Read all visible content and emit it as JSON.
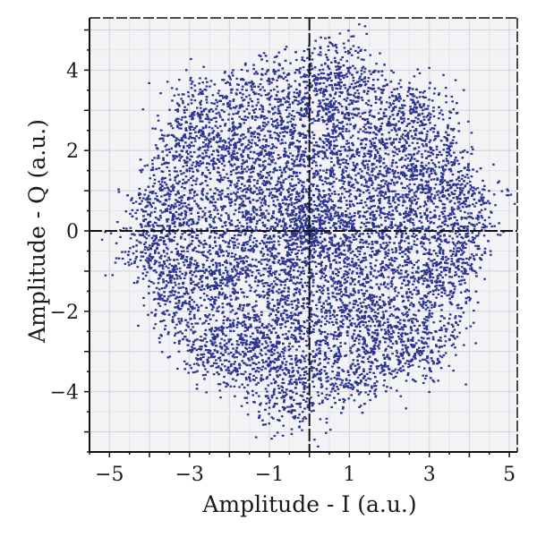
{
  "chart_data": {
    "type": "scatter",
    "title": "",
    "xlabel": "Amplitude - I (a.u.)",
    "ylabel": "Amplitude - Q (a.u.)",
    "xlim": [
      -5.5,
      5.2
    ],
    "ylim": [
      -5.5,
      5.3
    ],
    "xticks": [
      -5,
      -3,
      -1,
      1,
      3,
      5
    ],
    "xtick_labels": [
      "−5",
      "−3",
      "−1",
      "1",
      "3",
      "5"
    ],
    "yticks": [
      4,
      2,
      0,
      -2,
      -4
    ],
    "ytick_labels": [
      "4",
      "2",
      "0",
      "−2",
      "−4"
    ],
    "grid": true,
    "crosshair_at_origin": true,
    "legend": "none",
    "point_color": "#2b3590",
    "series": [
      {
        "points": [
          {
            "x": 0,
            "y": 0
          },
          {
            "x": 0.5,
            "y": 0.3
          },
          {
            "x": -0.4,
            "y": 0.6
          },
          {
            "x": -0.6,
            "y": -0.4
          },
          {
            "x": 0.3,
            "y": -0.6
          },
          {
            "x": 1.8,
            "y": 1.2
          },
          {
            "x": -1.5,
            "y": 1.6
          },
          {
            "x": -2.0,
            "y": -0.8
          },
          {
            "x": 1.2,
            "y": -1.9
          },
          {
            "x": 2.2,
            "y": 0.2
          },
          {
            "x": 0.2,
            "y": 2.3
          },
          {
            "x": -0.5,
            "y": -2.2
          },
          {
            "x": 3.0,
            "y": 1.5
          },
          {
            "x": -2.8,
            "y": 2.0
          },
          {
            "x": -3.2,
            "y": -1.2
          },
          {
            "x": 2.4,
            "y": -2.6
          },
          {
            "x": 0.5,
            "y": 3.4
          },
          {
            "x": -1.0,
            "y": -3.5
          },
          {
            "x": 3.6,
            "y": -0.5
          },
          {
            "x": -3.7,
            "y": 0.4
          },
          {
            "x": 4.2,
            "y": 0.8
          },
          {
            "x": -4.3,
            "y": -0.5
          },
          {
            "x": 0.8,
            "y": 4.3
          },
          {
            "x": -0.3,
            "y": -4.5
          },
          {
            "x": 2.8,
            "y": 3.0
          },
          {
            "x": -2.6,
            "y": -3.1
          },
          {
            "x": 3.1,
            "y": -3.0
          },
          {
            "x": -2.9,
            "y": 3.2
          }
        ]
      }
    ]
  }
}
